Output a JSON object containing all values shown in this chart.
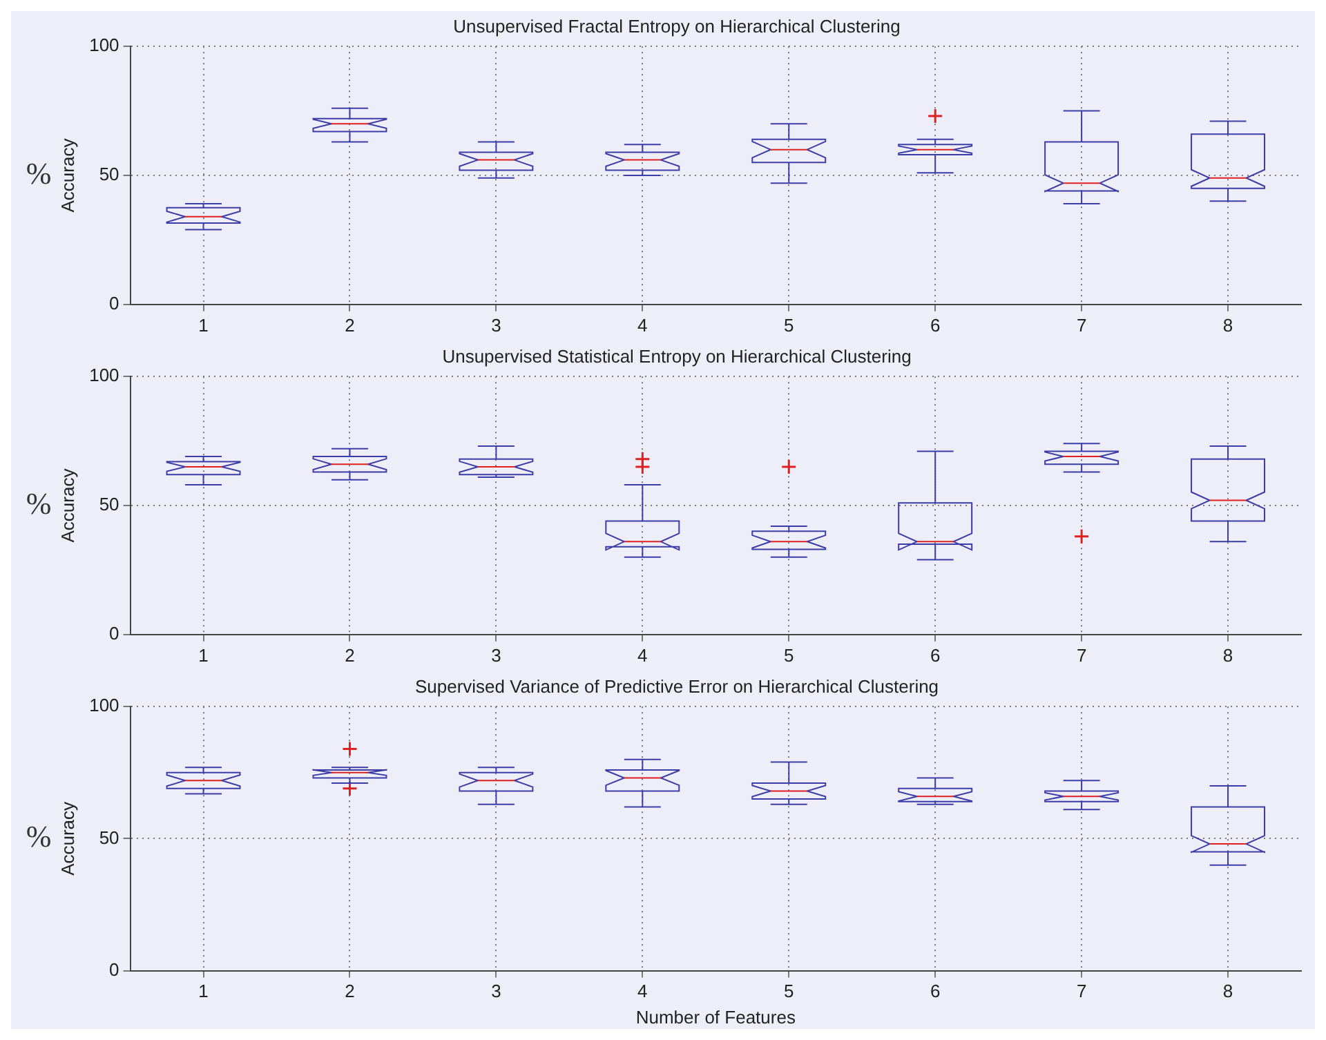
{
  "chart_data": [
    {
      "type": "box",
      "title": "Unsupervised Fractal Entropy on Hierarchical Clustering",
      "ylabel": "Accuracy",
      "annotations": [
        "%"
      ],
      "categories": [
        "1",
        "2",
        "3",
        "4",
        "5",
        "6",
        "7",
        "8"
      ],
      "color": "#3c3ca8",
      "ylim": [
        0,
        100
      ],
      "yticks": [
        0,
        50,
        100
      ],
      "grid": true,
      "marker": "cross",
      "boxes": [
        {
          "low": 29,
          "q1": 31.5,
          "median": 34,
          "q3": 37.5,
          "high": 39
        },
        {
          "low": 63,
          "q1": 67,
          "median": 70,
          "q3": 72,
          "high": 76
        },
        {
          "low": 49,
          "q1": 52,
          "median": 56,
          "q3": 59,
          "high": 63
        },
        {
          "low": 50,
          "q1": 52,
          "median": 56,
          "q3": 59,
          "high": 62
        },
        {
          "low": 47,
          "q1": 55,
          "median": 60,
          "q3": 64,
          "high": 70
        },
        {
          "low": 51,
          "q1": 58,
          "median": 60,
          "q3": 62,
          "high": 64,
          "outliers": [
            73
          ]
        },
        {
          "low": 39,
          "q1": 44,
          "median": 47,
          "q3": 63,
          "high": 75
        },
        {
          "low": 40,
          "q1": 45,
          "median": 49,
          "q3": 66,
          "high": 71
        }
      ]
    },
    {
      "type": "box",
      "title": "Unsupervised Statistical Entropy on Hierarchical Clustering",
      "ylabel": "Accuracy",
      "annotations": [
        "%"
      ],
      "categories": [
        "1",
        "2",
        "3",
        "4",
        "5",
        "6",
        "7",
        "8"
      ],
      "color": "#3c3ca8",
      "ylim": [
        0,
        100
      ],
      "yticks": [
        0,
        50,
        100
      ],
      "grid": true,
      "marker": "cross",
      "boxes": [
        {
          "low": 58,
          "q1": 62,
          "median": 65,
          "q3": 67,
          "high": 69
        },
        {
          "low": 60,
          "q1": 63,
          "median": 66,
          "q3": 69,
          "high": 72
        },
        {
          "low": 61,
          "q1": 62,
          "median": 65,
          "q3": 68,
          "high": 73
        },
        {
          "low": 30,
          "q1": 34,
          "median": 36,
          "q3": 44,
          "high": 58,
          "outliers": [
            68,
            65
          ]
        },
        {
          "low": 30,
          "q1": 33,
          "median": 36,
          "q3": 40,
          "high": 42,
          "outliers": [
            65
          ]
        },
        {
          "low": 29,
          "q1": 35,
          "median": 36,
          "q3": 51,
          "high": 71
        },
        {
          "low": 63,
          "q1": 66,
          "median": 69,
          "q3": 71,
          "high": 74,
          "outliers": [
            38
          ]
        },
        {
          "low": 36,
          "q1": 44,
          "median": 52,
          "q3": 68,
          "high": 73
        }
      ]
    },
    {
      "type": "box",
      "title": "Supervised Variance of Predictive Error on Hierarchical Clustering",
      "xlabel": "Number of Features",
      "ylabel": "Accuracy",
      "annotations": [
        "%"
      ],
      "categories": [
        "1",
        "2",
        "3",
        "4",
        "5",
        "6",
        "7",
        "8"
      ],
      "color": "#3c3ca8",
      "ylim": [
        0,
        100
      ],
      "yticks": [
        0,
        50,
        100
      ],
      "grid": true,
      "marker": "cross",
      "boxes": [
        {
          "low": 67,
          "q1": 69,
          "median": 72,
          "q3": 75,
          "high": 77
        },
        {
          "low": 71,
          "q1": 73,
          "median": 75,
          "q3": 76,
          "high": 77,
          "outliers": [
            84,
            69
          ]
        },
        {
          "low": 63,
          "q1": 68,
          "median": 72,
          "q3": 75,
          "high": 77
        },
        {
          "low": 62,
          "q1": 68,
          "median": 73,
          "q3": 76,
          "high": 80
        },
        {
          "low": 63,
          "q1": 65,
          "median": 68,
          "q3": 71,
          "high": 79
        },
        {
          "low": 63,
          "q1": 64,
          "median": 66,
          "q3": 69,
          "high": 73
        },
        {
          "low": 61,
          "q1": 64,
          "median": 66,
          "q3": 68,
          "high": 72
        },
        {
          "low": 40,
          "q1": 45,
          "median": 48,
          "q3": 62,
          "high": 70
        }
      ]
    }
  ]
}
